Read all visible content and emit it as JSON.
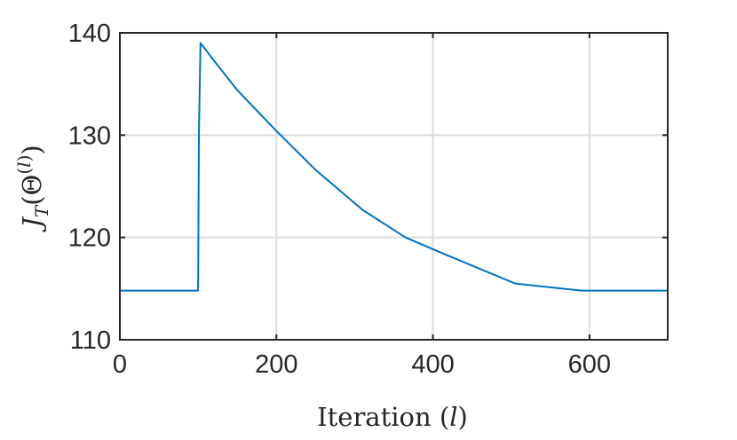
{
  "chart_data": {
    "type": "line",
    "xlabel": "Iteration (l)",
    "ylabel": "J_T(Θ^(l))",
    "xlim": [
      0,
      700
    ],
    "ylim": [
      110,
      140
    ],
    "xticks": [
      "0",
      "200",
      "400",
      "600"
    ],
    "yticks": [
      "110",
      "120",
      "130",
      "140"
    ],
    "grid": true,
    "legend": "none",
    "line_color": "#0072BD",
    "series": [
      {
        "x": [
          0,
          100,
          101,
          103,
          120,
          150,
          200,
          250,
          310,
          365,
          420,
          505,
          590,
          700
        ],
        "y": [
          114.8,
          114.8,
          130,
          139,
          137.3,
          134.4,
          130.4,
          126.6,
          122.7,
          120,
          118.2,
          115.5,
          114.8,
          114.8
        ]
      }
    ]
  }
}
